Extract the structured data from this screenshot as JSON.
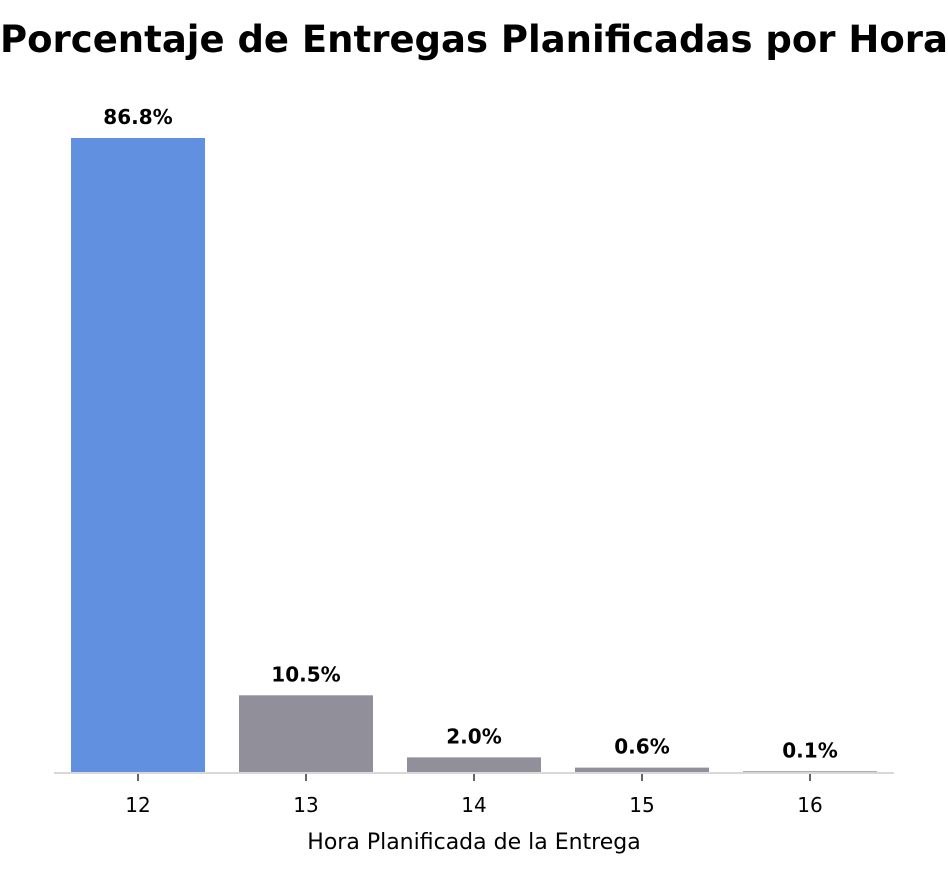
{
  "chart_data": {
    "type": "bar",
    "title": "Porcentaje de Entregas Planificadas por Hora",
    "xlabel": "Hora Planificada de la Entrega",
    "ylabel": "",
    "categories": [
      "12",
      "13",
      "14",
      "15",
      "16"
    ],
    "values": [
      86.8,
      10.5,
      2.0,
      0.6,
      0.1
    ],
    "data_labels": [
      "86.8%",
      "10.5%",
      "2.0%",
      "0.6%",
      "0.1%"
    ],
    "ylim": [
      0,
      86.8
    ],
    "grid": false,
    "legend": "none",
    "colors": {
      "highlight": "#6190E1",
      "default": "#918F9A",
      "baseline": "#D8D8D8"
    },
    "highlight_index": 0
  }
}
